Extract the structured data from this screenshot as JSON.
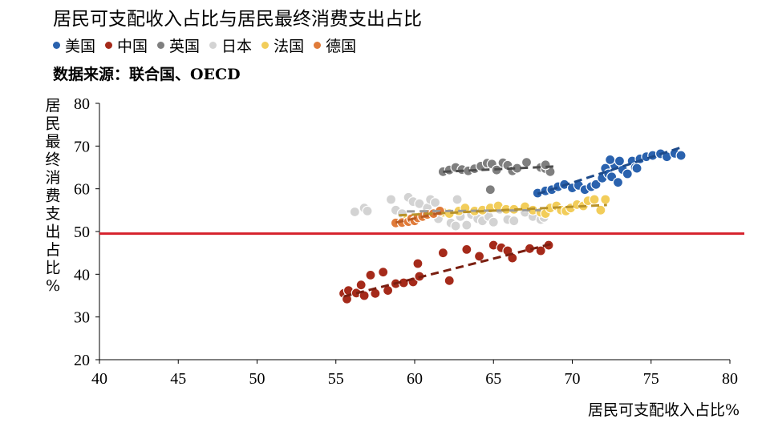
{
  "chart_data": {
    "type": "scatter",
    "title": "居民可支配收入占比与居民最终消费支出占比",
    "source": "数据来源：联合国、OECD",
    "xlabel": "居民可支配收入占比%",
    "ylabel": "居民最终消费支出占比%",
    "xlim": [
      40,
      80
    ],
    "ylim": [
      20,
      80
    ],
    "xticks": [
      "40",
      "45",
      "50",
      "55",
      "60",
      "65",
      "70",
      "75",
      "80"
    ],
    "yticks": [
      "20",
      "30",
      "40",
      "50",
      "60",
      "70",
      "80"
    ],
    "reference_line": {
      "y": 49.5,
      "color": "#d6212b"
    },
    "series": [
      {
        "name": "日本",
        "color": "#d3d3d3",
        "points": [
          [
            56.2,
            54.6
          ],
          [
            56.8,
            55.5
          ],
          [
            57.0,
            54.8
          ],
          [
            58.5,
            57.5
          ],
          [
            58.8,
            55.0
          ],
          [
            59.2,
            54.2
          ],
          [
            59.6,
            58.0
          ],
          [
            59.9,
            57.0
          ],
          [
            60.3,
            56.5
          ],
          [
            60.8,
            55.5
          ],
          [
            61.0,
            57.5
          ],
          [
            61.3,
            56.8
          ],
          [
            61.5,
            53.0
          ],
          [
            61.9,
            54.5
          ],
          [
            62.3,
            52.0
          ],
          [
            62.6,
            51.3
          ],
          [
            62.9,
            53.5
          ],
          [
            62.7,
            57.5
          ],
          [
            63.3,
            51.5
          ],
          [
            63.6,
            54.0
          ],
          [
            64.0,
            53.0
          ],
          [
            64.3,
            52.5
          ],
          [
            64.7,
            53.5
          ],
          [
            65.0,
            52.2
          ],
          [
            65.4,
            55.2
          ],
          [
            65.9,
            52.8
          ],
          [
            66.3,
            52.5
          ],
          [
            67.0,
            54.5
          ],
          [
            67.5,
            53.5
          ],
          [
            68.0,
            52.8
          ],
          [
            68.2,
            53.3
          ]
        ],
        "trend": [
          [
            59.5,
            54.7
          ],
          [
            68.0,
            55.0
          ]
        ]
      },
      {
        "name": "英国",
        "color": "#7f7f7f",
        "points": [
          [
            61.8,
            64.0
          ],
          [
            62.2,
            64.4
          ],
          [
            62.6,
            65.0
          ],
          [
            63.0,
            64.5
          ],
          [
            63.4,
            64.2
          ],
          [
            63.8,
            64.7
          ],
          [
            64.2,
            65.3
          ],
          [
            64.6,
            66.0
          ],
          [
            64.9,
            65.8
          ],
          [
            65.2,
            64.4
          ],
          [
            65.6,
            66.1
          ],
          [
            65.9,
            65.5
          ],
          [
            66.2,
            64.2
          ],
          [
            66.5,
            64.8
          ],
          [
            67.1,
            66.2
          ],
          [
            68.0,
            65.0
          ],
          [
            68.3,
            64.7
          ],
          [
            68.6,
            64.0
          ],
          [
            68.3,
            65.6
          ],
          [
            64.8,
            59.8
          ]
        ],
        "trend": [
          [
            61.8,
            64.0
          ],
          [
            68.8,
            65.2
          ]
        ]
      },
      {
        "name": "法国",
        "color": "#f2cd5a",
        "points": [
          [
            59.0,
            52.0
          ],
          [
            59.5,
            52.8
          ],
          [
            60.3,
            53.5
          ],
          [
            60.8,
            54.0
          ],
          [
            61.2,
            54.2
          ],
          [
            61.8,
            54.5
          ],
          [
            62.2,
            54.2
          ],
          [
            62.8,
            54.8
          ],
          [
            63.2,
            55.5
          ],
          [
            63.8,
            54.8
          ],
          [
            64.3,
            55.0
          ],
          [
            64.8,
            55.5
          ],
          [
            65.3,
            56.0
          ],
          [
            65.8,
            55.2
          ],
          [
            66.3,
            55.2
          ],
          [
            67.0,
            55.8
          ],
          [
            67.5,
            55.0
          ],
          [
            68.0,
            54.5
          ],
          [
            68.3,
            54.2
          ],
          [
            68.6,
            55.5
          ],
          [
            69.0,
            56.0
          ],
          [
            69.3,
            55.0
          ],
          [
            69.6,
            54.8
          ],
          [
            69.9,
            55.5
          ],
          [
            70.3,
            56.3
          ],
          [
            70.7,
            56.0
          ],
          [
            71.0,
            57.2
          ],
          [
            71.4,
            57.5
          ],
          [
            71.8,
            55.0
          ],
          [
            72.1,
            57.5
          ]
        ],
        "trend": [
          [
            59.0,
            53.8
          ],
          [
            72.2,
            56.2
          ]
        ]
      },
      {
        "name": "德国",
        "color": "#e07b39",
        "points": [
          [
            58.8,
            52.0
          ],
          [
            59.2,
            52.1
          ],
          [
            59.6,
            52.3
          ],
          [
            59.8,
            53.0
          ],
          [
            60.0,
            52.5
          ],
          [
            60.2,
            53.2
          ],
          [
            60.5,
            53.5
          ],
          [
            60.8,
            54.0
          ],
          [
            61.2,
            54.2
          ],
          [
            61.6,
            54.8
          ]
        ],
        "trend": [
          [
            58.8,
            52.1
          ],
          [
            61.8,
            54.5
          ]
        ]
      },
      {
        "name": "中国",
        "color": "#a52a1a",
        "points": [
          [
            55.5,
            35.5
          ],
          [
            55.7,
            34.2
          ],
          [
            55.8,
            36.2
          ],
          [
            56.3,
            35.6
          ],
          [
            56.6,
            37.5
          ],
          [
            56.8,
            35.0
          ],
          [
            57.2,
            39.8
          ],
          [
            57.5,
            35.5
          ],
          [
            58.0,
            40.5
          ],
          [
            58.3,
            36.2
          ],
          [
            58.8,
            37.8
          ],
          [
            59.3,
            38.0
          ],
          [
            59.9,
            38.2
          ],
          [
            60.2,
            42.5
          ],
          [
            60.3,
            39.5
          ],
          [
            61.8,
            45.0
          ],
          [
            62.2,
            38.5
          ],
          [
            63.3,
            45.8
          ],
          [
            64.1,
            44.2
          ],
          [
            65.0,
            46.8
          ],
          [
            65.5,
            46.2
          ],
          [
            65.9,
            45.5
          ],
          [
            66.2,
            43.8
          ],
          [
            67.3,
            46.0
          ],
          [
            68.0,
            45.5
          ],
          [
            68.5,
            46.8
          ]
        ],
        "trend": [
          [
            55.5,
            34.8
          ],
          [
            68.8,
            47.2
          ]
        ]
      },
      {
        "name": "美国",
        "color": "#2a62ae",
        "points": [
          [
            67.8,
            59.0
          ],
          [
            68.3,
            59.5
          ],
          [
            68.7,
            59.8
          ],
          [
            69.1,
            60.5
          ],
          [
            69.5,
            61.0
          ],
          [
            70.0,
            60.2
          ],
          [
            70.4,
            60.8
          ],
          [
            70.8,
            59.8
          ],
          [
            71.2,
            60.5
          ],
          [
            71.5,
            61.0
          ],
          [
            71.9,
            62.5
          ],
          [
            72.1,
            64.8
          ],
          [
            72.3,
            63.5
          ],
          [
            72.5,
            62.8
          ],
          [
            72.7,
            65.5
          ],
          [
            72.9,
            61.5
          ],
          [
            73.2,
            64.5
          ],
          [
            73.5,
            63.5
          ],
          [
            73.8,
            66.5
          ],
          [
            74.0,
            65.0
          ],
          [
            74.3,
            67.0
          ],
          [
            74.7,
            67.5
          ],
          [
            75.1,
            67.8
          ],
          [
            75.6,
            68.2
          ],
          [
            76.0,
            67.5
          ],
          [
            76.5,
            68.3
          ],
          [
            76.9,
            67.8
          ],
          [
            72.4,
            66.8
          ],
          [
            73.0,
            66.5
          ],
          [
            74.1,
            64.8
          ]
        ],
        "trend": [
          [
            67.8,
            58.8
          ],
          [
            77.0,
            69.8
          ]
        ]
      }
    ],
    "legend_order": [
      "美国",
      "中国",
      "英国",
      "日本",
      "法国",
      "德国"
    ]
  }
}
